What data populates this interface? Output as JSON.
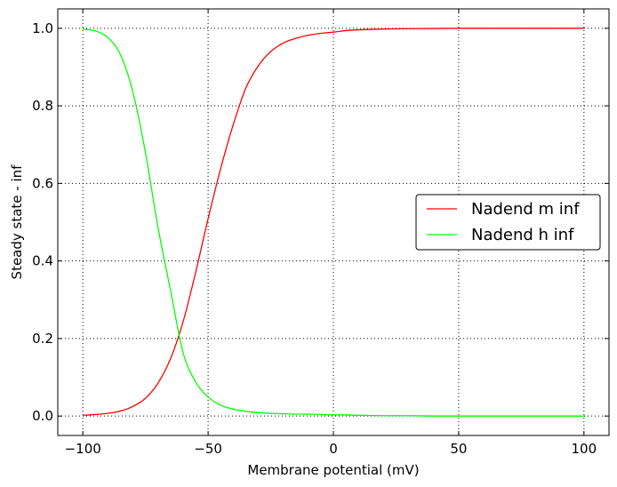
{
  "chart_data": {
    "type": "line",
    "xlabel": "Membrane potential (mV)",
    "ylabel": "Steady state - inf",
    "xlim": [
      -110,
      110
    ],
    "ylim": [
      -0.05,
      1.05
    ],
    "xticks": [
      -100,
      -50,
      0,
      50,
      100
    ],
    "xtick_labels": [
      "−100",
      "−50",
      "0",
      "50",
      "100"
    ],
    "yticks": [
      0.0,
      0.2,
      0.4,
      0.6,
      0.8,
      1.0
    ],
    "ytick_labels": [
      "0.0",
      "0.2",
      "0.4",
      "0.6",
      "0.8",
      "1.0"
    ],
    "grid": true,
    "legend_position": "center-right",
    "x": [
      -100,
      -95,
      -90,
      -85,
      -80,
      -75,
      -70,
      -65,
      -60,
      -55,
      -50,
      -45,
      -40,
      -35,
      -30,
      -25,
      -20,
      -15,
      -10,
      -5,
      0,
      5,
      10,
      20,
      30,
      40,
      50,
      60,
      70,
      80,
      90,
      100
    ],
    "series": [
      {
        "name": "Nadend m inf",
        "color": "#ff0000",
        "values": [
          0.002,
          0.004,
          0.007,
          0.013,
          0.025,
          0.046,
          0.085,
          0.148,
          0.243,
          0.37,
          0.509,
          0.638,
          0.751,
          0.845,
          0.903,
          0.94,
          0.962,
          0.974,
          0.982,
          0.987,
          0.99,
          0.994,
          0.996,
          0.998,
          0.999,
          0.9995,
          1.0,
          1.0,
          1.0,
          1.0,
          1.0,
          1.0
        ]
      },
      {
        "name": "Nadend h inf",
        "color": "#00ff00",
        "values": [
          0.998,
          0.993,
          0.976,
          0.932,
          0.835,
          0.679,
          0.486,
          0.324,
          0.164,
          0.088,
          0.049,
          0.028,
          0.018,
          0.012,
          0.009,
          0.007,
          0.006,
          0.005,
          0.005,
          0.004,
          0.003,
          0.003,
          0.002,
          0.001,
          0.001,
          0.0,
          0.0,
          0.0,
          0.0,
          0.0,
          0.0,
          0.0
        ]
      }
    ]
  }
}
